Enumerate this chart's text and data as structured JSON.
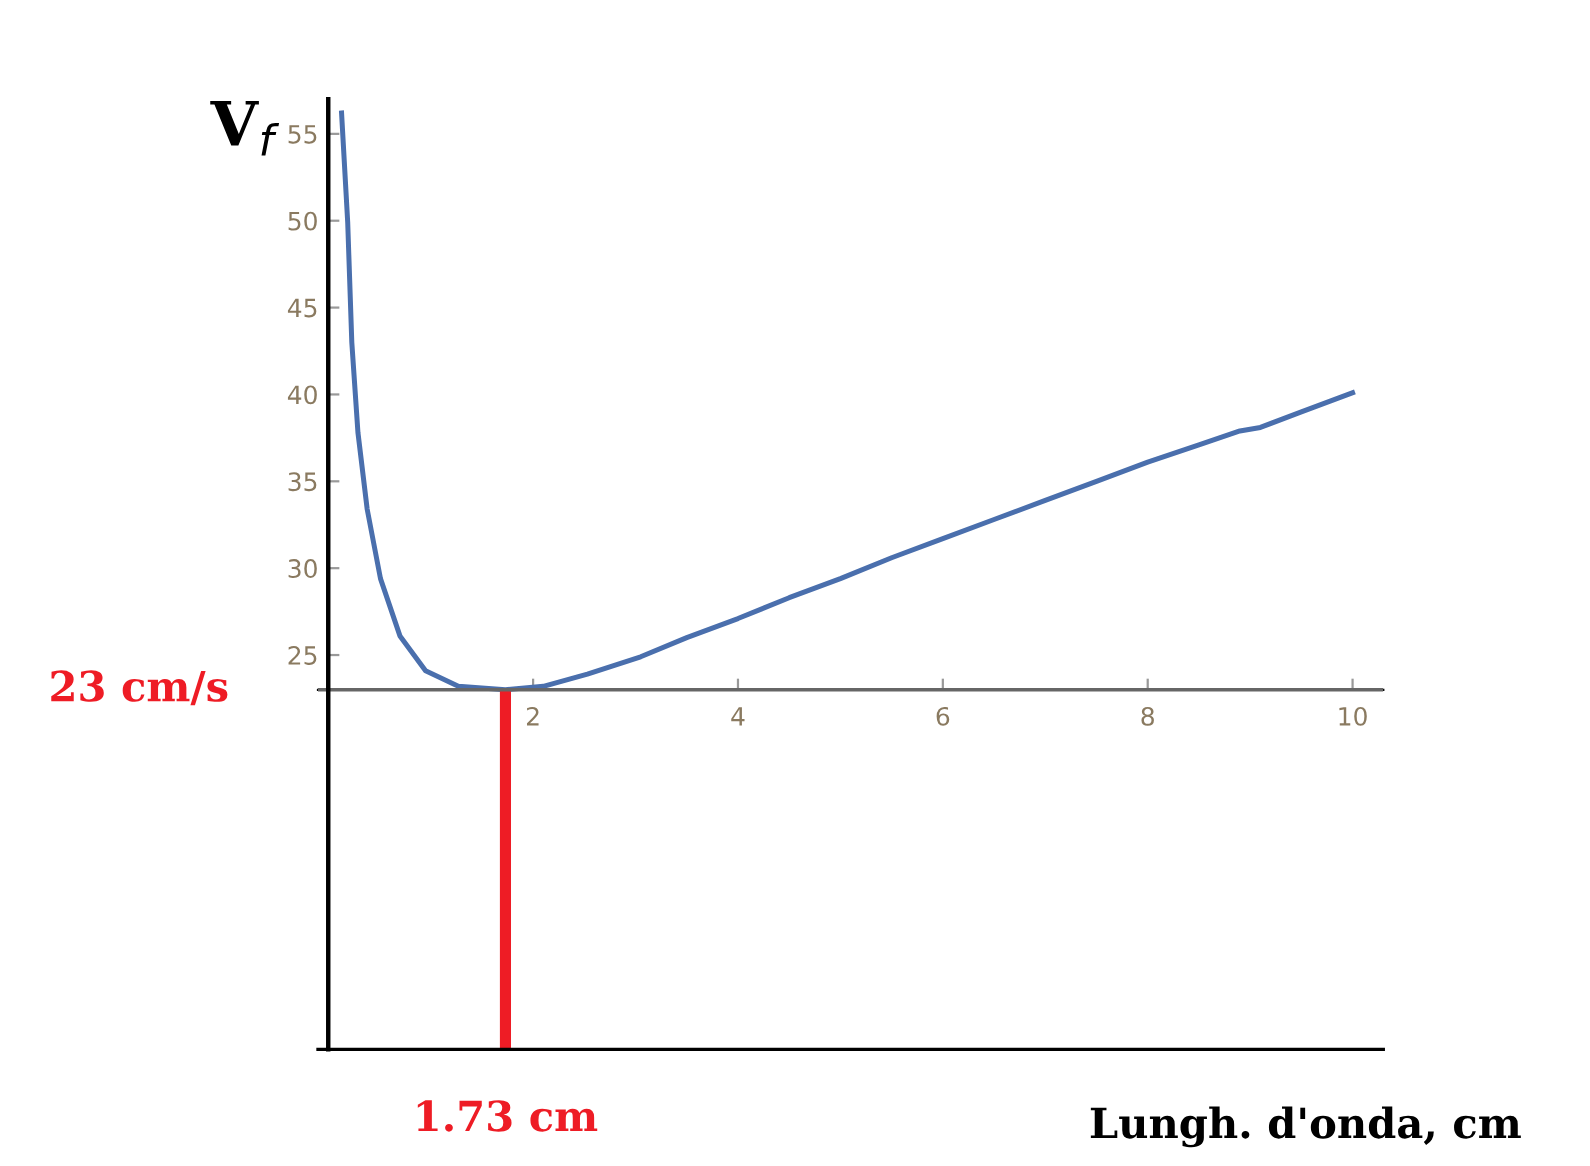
{
  "chart_data": {
    "type": "line",
    "xlabel": "Lungh. d'onda, cm",
    "ylabel": "V$_{f}$",
    "series": [
      {
        "color": "#4a6fad",
        "x": [
          0.13,
          0.19,
          0.23,
          0.29,
          0.38,
          0.51,
          0.7,
          0.95,
          1.27,
          1.73,
          2.1,
          2.53,
          3.05,
          3.5,
          4,
          4.5,
          5,
          5.5,
          6,
          6.5,
          7,
          7.5,
          8,
          8.5,
          8.8,
          8.9,
          9.1,
          9.5,
          10
        ],
        "values": [
          56.2,
          49.9,
          43,
          37.8,
          33.4,
          29.4,
          26.1,
          24.1,
          23.2,
          23,
          23.2,
          23.9,
          24.9,
          26,
          27.1,
          28.3,
          29.4,
          30.6,
          31.7,
          32.8,
          33.9,
          35,
          36.1,
          37.1,
          37.7,
          37.9,
          38.1,
          39,
          40.1
        ]
      }
    ],
    "xlim": [
      -0.1,
      10.3
    ],
    "xticks": [
      2,
      4,
      6,
      8,
      10
    ],
    "ylim": [
      2.3,
      57
    ],
    "yticks": [
      25,
      30,
      35,
      40,
      45,
      50,
      55
    ],
    "ref_lines": [
      {
        "axis": "x",
        "value": 1.73,
        "label": "1.73 cm",
        "color": "#ee1c25"
      },
      {
        "axis": "y",
        "value": 23,
        "label": "23 cm/s",
        "color": "#666666"
      }
    ],
    "grid": false,
    "legend": false,
    "marker": "none",
    "line_style": "solid"
  }
}
